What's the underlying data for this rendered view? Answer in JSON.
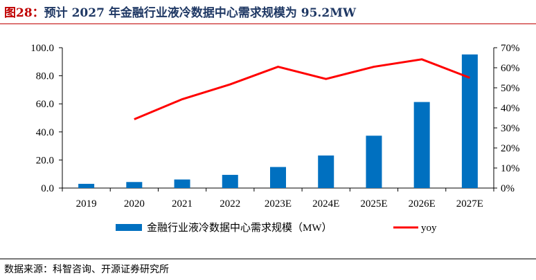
{
  "figure_label": "图28：",
  "title": "预计 2027 年金融行业液冷数据中心需求规模为 95.2MW",
  "source": "数据来源：科智咨询、开源证券研究所",
  "chart_data": {
    "type": "bar+line",
    "categories": [
      "2019",
      "2020",
      "2021",
      "2022",
      "2023E",
      "2024E",
      "2025E",
      "2026E",
      "2027E"
    ],
    "series": [
      {
        "name": "金融行业液冷数据中心需求规模（MW）",
        "type": "bar",
        "axis": "left",
        "color": "#0070c0",
        "values": [
          3.0,
          4.3,
          6.1,
          9.4,
          15.0,
          23.2,
          37.3,
          61.3,
          95.2
        ]
      },
      {
        "name": "yoy",
        "type": "line",
        "axis": "right",
        "color": "#ff0000",
        "values": [
          null,
          34.3,
          44.3,
          51.7,
          60.5,
          54.4,
          60.5,
          64.2,
          55.0
        ]
      }
    ],
    "left_axis": {
      "ylim": [
        0,
        100
      ],
      "ticks": [
        "0.0",
        "20.0",
        "40.0",
        "60.0",
        "80.0",
        "100.0"
      ]
    },
    "right_axis": {
      "ylim": [
        0,
        70
      ],
      "ticks": [
        "0%",
        "10%",
        "20%",
        "30%",
        "40%",
        "50%",
        "60%",
        "70%"
      ]
    },
    "grid": false,
    "legend": "bottom"
  }
}
